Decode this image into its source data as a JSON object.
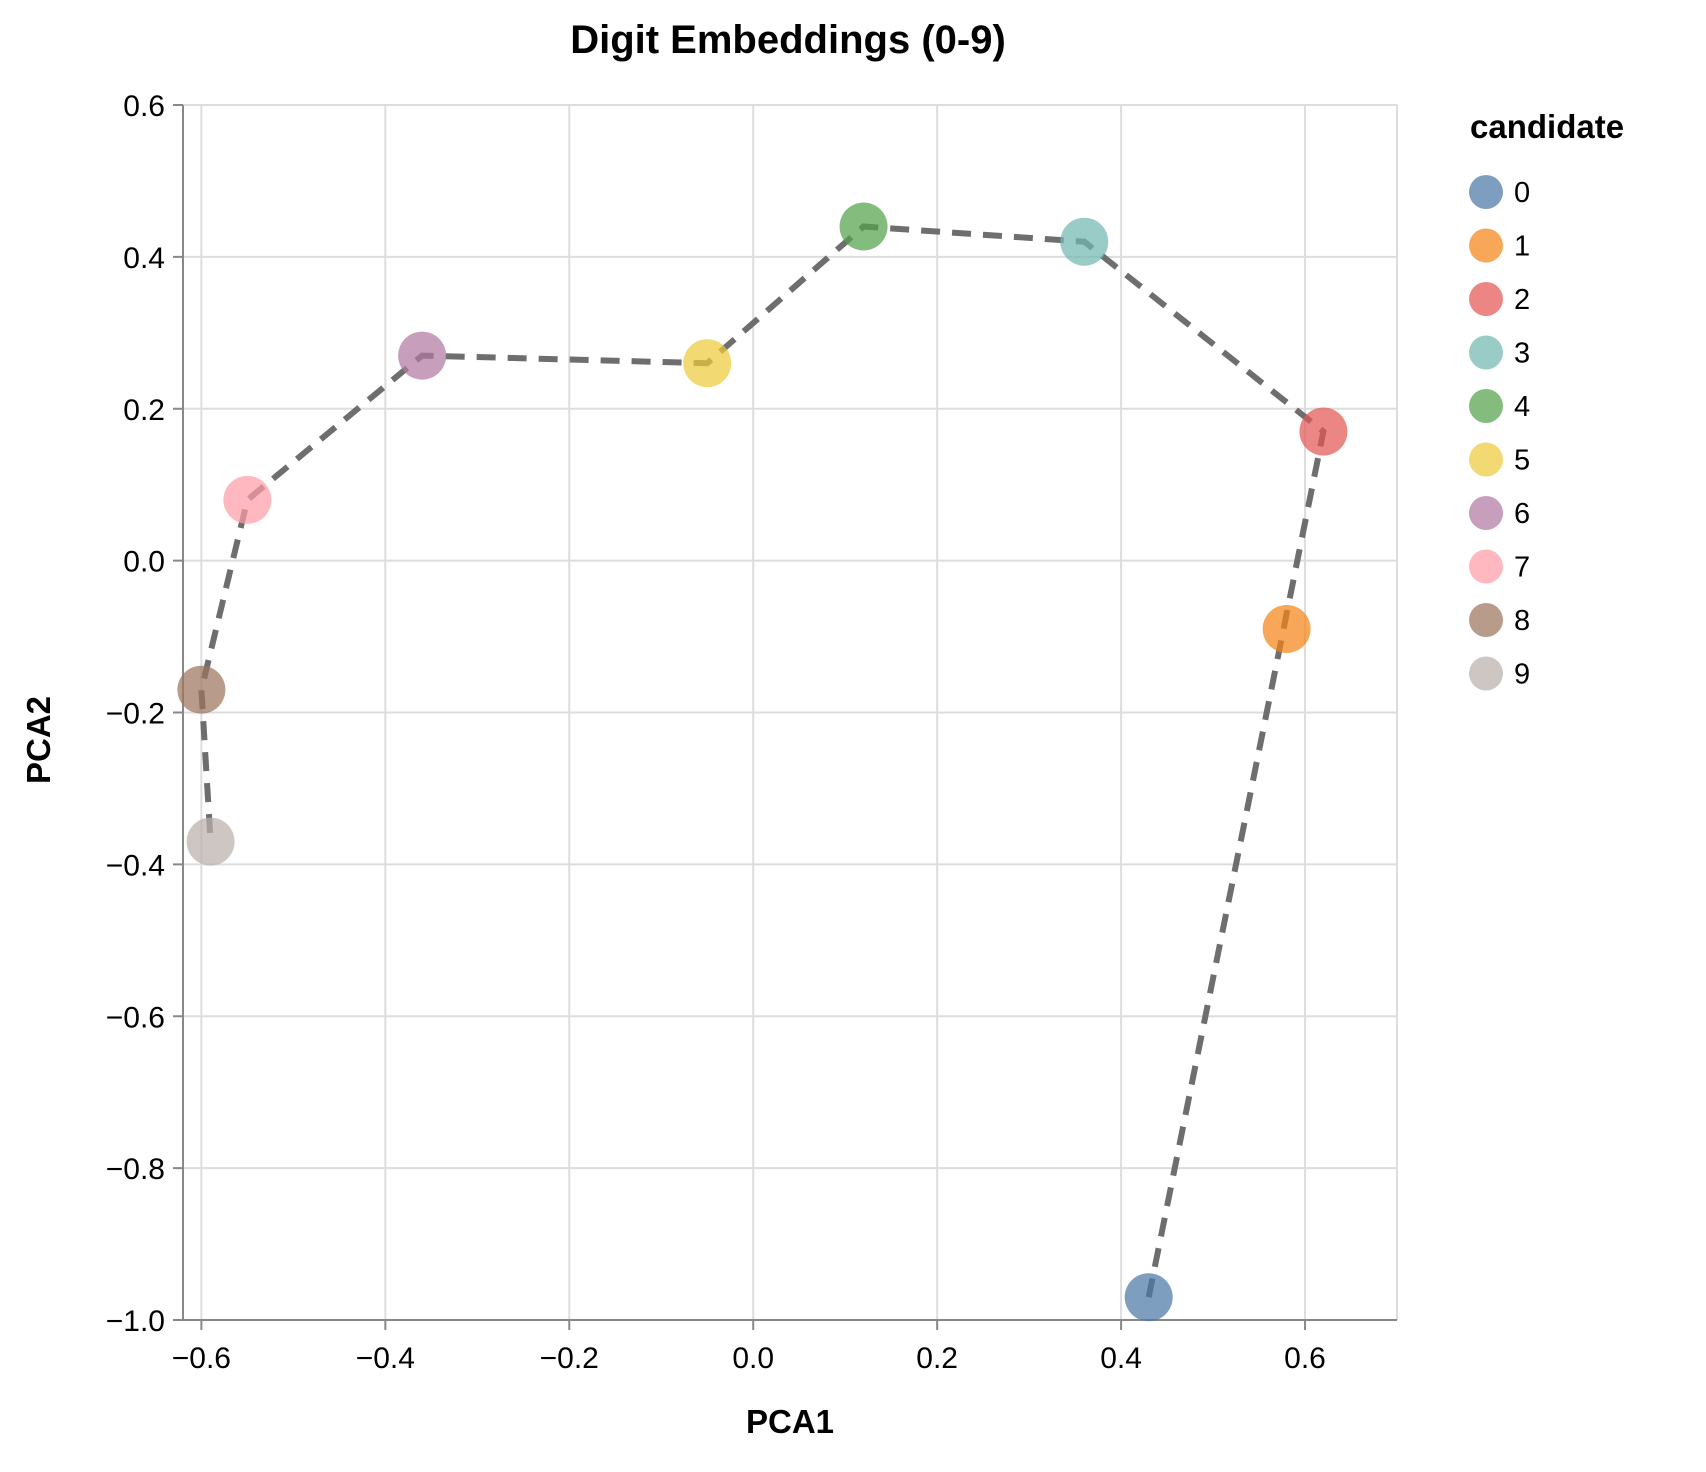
{
  "chart_data": {
    "type": "scatter",
    "title": "Digit Embeddings (0-9)",
    "xlabel": "PCA1",
    "ylabel": "PCA2",
    "xlim": [
      -0.62,
      0.7
    ],
    "ylim": [
      -1.0,
      0.6
    ],
    "x_ticks": [
      -0.6,
      -0.4,
      -0.2,
      0.0,
      0.2,
      0.4,
      0.6
    ],
    "x_tick_labels": [
      "−0.6",
      "−0.4",
      "−0.2",
      "0.0",
      "0.2",
      "0.4",
      "0.6"
    ],
    "y_ticks": [
      0.6,
      0.4,
      0.2,
      0.0,
      -0.2,
      -0.4,
      -0.6,
      -0.8,
      -1.0
    ],
    "y_tick_labels": [
      "0.6",
      "0.4",
      "0.2",
      "0.0",
      "−0.2",
      "−0.4",
      "−0.6",
      "−0.8",
      "−1.0"
    ],
    "grid": true,
    "legend": {
      "title": "candidate",
      "position": "right"
    },
    "connect_order": [
      0,
      2,
      3,
      4,
      5,
      6,
      7,
      8,
      9
    ],
    "line_color": "#6e6e6e",
    "points": [
      {
        "candidate": "0",
        "x": 0.43,
        "y": -0.97,
        "color": "#4c78a8"
      },
      {
        "candidate": "1",
        "x": 0.58,
        "y": -0.09,
        "color": "#f58518"
      },
      {
        "candidate": "2",
        "x": 0.62,
        "y": 0.17,
        "color": "#e45756"
      },
      {
        "candidate": "3",
        "x": 0.36,
        "y": 0.42,
        "color": "#72b7b2"
      },
      {
        "candidate": "4",
        "x": 0.12,
        "y": 0.44,
        "color": "#54a24b"
      },
      {
        "candidate": "5",
        "x": -0.05,
        "y": 0.26,
        "color": "#eeca3b"
      },
      {
        "candidate": "6",
        "x": -0.36,
        "y": 0.27,
        "color": "#b279a2"
      },
      {
        "candidate": "7",
        "x": -0.55,
        "y": 0.08,
        "color": "#ff9da6"
      },
      {
        "candidate": "8",
        "x": -0.6,
        "y": -0.17,
        "color": "#9d755d"
      },
      {
        "candidate": "9",
        "x": -0.59,
        "y": -0.37,
        "color": "#bab0ac"
      }
    ]
  }
}
